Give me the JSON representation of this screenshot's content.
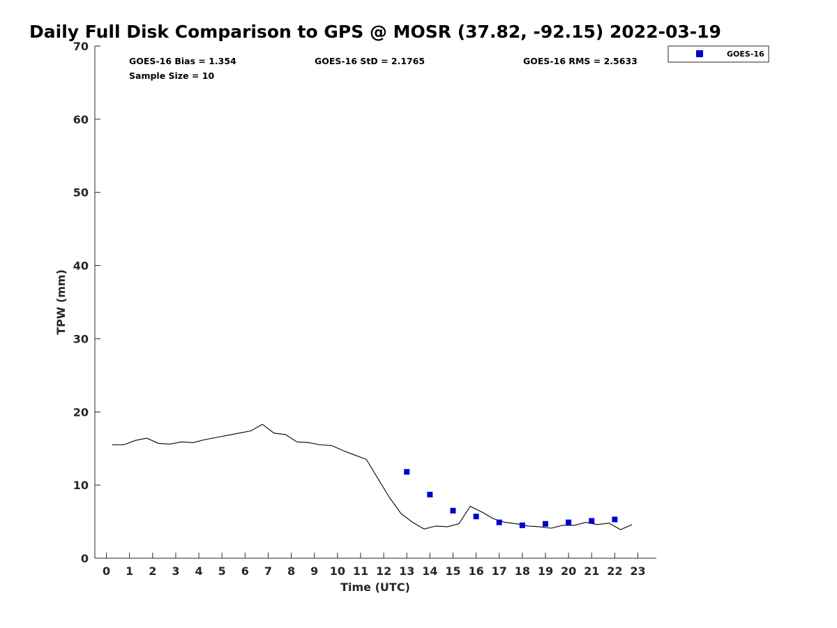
{
  "chart_data": {
    "type": "scatter",
    "title": "Daily Full Disk Comparison to GPS @ MOSR (37.82, -92.15) 2022-03-19",
    "xlabel": "Time (UTC)",
    "ylabel": "TPW (mm)",
    "xlim": [
      -0.5,
      23.8
    ],
    "ylim": [
      0,
      70
    ],
    "xticks": [
      "0",
      "1",
      "2",
      "3",
      "4",
      "5",
      "6",
      "7",
      "8",
      "9",
      "10",
      "11",
      "12",
      "13",
      "14",
      "15",
      "16",
      "17",
      "18",
      "19",
      "20",
      "21",
      "22",
      "23"
    ],
    "yticks": [
      "0",
      "10",
      "20",
      "30",
      "40",
      "50",
      "60",
      "70"
    ],
    "grid": false,
    "legend_position": "top-right",
    "stats": {
      "bias": "GOES-16 Bias = 1.354",
      "sample": "Sample Size = 10",
      "std": "GOES-16 StD = 2.1765",
      "rms": "GOES-16 RMS = 2.5633"
    },
    "series": [
      {
        "kind": "line",
        "color": "#000000",
        "x": [
          0.25,
          0.75,
          1.25,
          1.75,
          2.25,
          2.75,
          3.25,
          3.75,
          4.25,
          4.75,
          5.25,
          5.75,
          6.25,
          6.75,
          7.25,
          7.75,
          8.25,
          8.75,
          9.25,
          9.75,
          10.25,
          10.75,
          11.25,
          11.75,
          12.25,
          12.75,
          13.25,
          13.75,
          14.25,
          14.75,
          15.25,
          15.75,
          16.25,
          16.75,
          17.25,
          17.75,
          18.25,
          18.75,
          19.25,
          19.75,
          20.25,
          20.75,
          21.25,
          21.75,
          22.25,
          22.75
        ],
        "y": [
          15.5,
          15.5,
          16.1,
          16.4,
          15.7,
          15.6,
          15.9,
          15.8,
          16.2,
          16.5,
          16.8,
          17.1,
          17.4,
          18.3,
          17.1,
          16.9,
          15.9,
          15.8,
          15.5,
          15.4,
          14.7,
          14.1,
          13.5,
          10.9,
          8.3,
          6.1,
          4.9,
          4.0,
          4.4,
          4.3,
          4.7,
          7.1,
          6.3,
          5.4,
          4.9,
          4.7,
          4.4,
          4.3,
          4.1,
          4.5,
          4.5,
          4.9,
          4.6,
          4.8,
          3.9,
          4.6
        ]
      },
      {
        "kind": "markers",
        "name": "GOES-16",
        "color": "#0000cd",
        "x": [
          13,
          14,
          15,
          16,
          17,
          18,
          19,
          20,
          21,
          22
        ],
        "y": [
          11.8,
          8.7,
          6.5,
          5.7,
          4.9,
          4.5,
          4.7,
          4.9,
          5.1,
          5.3
        ]
      }
    ]
  }
}
